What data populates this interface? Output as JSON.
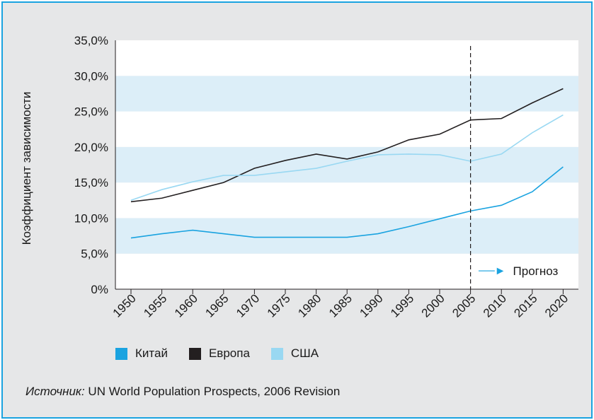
{
  "colors": {
    "frame": "#1aa3e0",
    "panel_bg": "#e6e7e8",
    "band": "#dceef8",
    "china": "#1aa3e0",
    "europe": "#231f20",
    "usa": "#99d8f2"
  },
  "chart_data": {
    "type": "line",
    "ylabel": "Коэффициент зависимости",
    "xlabel": "",
    "ylim": [
      0,
      35
    ],
    "y_ticks": [
      "0%",
      "5,0%",
      "10,0%",
      "15,0%",
      "20,0%",
      "25,0%",
      "30,0%",
      "35,0%"
    ],
    "x": [
      "1950",
      "1955",
      "1960",
      "1965",
      "1970",
      "1975",
      "1980",
      "1985",
      "1990",
      "1995",
      "2000",
      "2005",
      "2010",
      "2015",
      "2020"
    ],
    "series": [
      {
        "name": "Китай",
        "values": [
          7.2,
          7.8,
          8.3,
          7.8,
          7.3,
          7.3,
          7.3,
          7.3,
          7.8,
          8.8,
          9.9,
          11.0,
          11.8,
          13.7,
          17.2
        ]
      },
      {
        "name": "Европа",
        "values": [
          12.3,
          12.8,
          13.9,
          15.0,
          17.0,
          18.1,
          19.0,
          18.3,
          19.3,
          21.0,
          21.8,
          23.8,
          24.0,
          26.2,
          28.2
        ]
      },
      {
        "name": "США",
        "values": [
          12.5,
          14.0,
          15.1,
          16.0,
          16.0,
          16.5,
          17.0,
          18.0,
          18.9,
          19.0,
          18.9,
          18.0,
          19.0,
          22.0,
          24.5
        ]
      }
    ],
    "forecast_from": "2005",
    "forecast_label": "Прогноз",
    "grid": "alternating horizontal bands",
    "legend_position": "bottom"
  },
  "source": {
    "label": "Источник:",
    "text": " UN World Population Prospects, 2006 Revision"
  }
}
